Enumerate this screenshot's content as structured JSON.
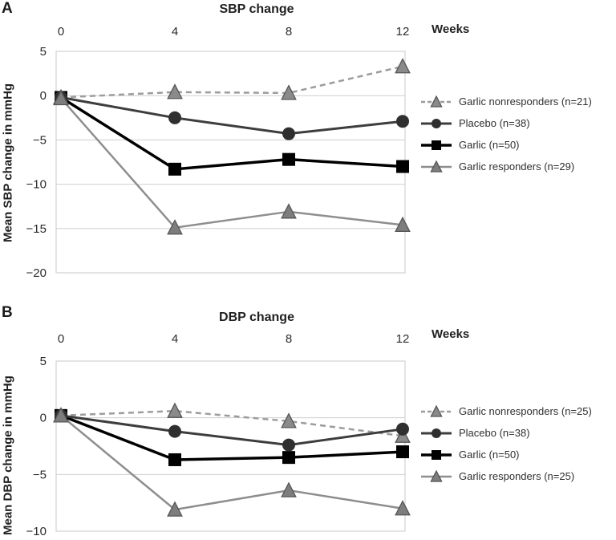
{
  "chart_data": [
    {
      "type": "line",
      "panel_label": "A",
      "title": "SBP change",
      "xlabel": "Weeks",
      "ylabel": "Mean SBP change in mmHg",
      "x": [
        0,
        4,
        8,
        12
      ],
      "x_tick_labels": [
        "0",
        "4",
        "8",
        "12"
      ],
      "y_ticks": [
        5,
        0,
        -5,
        -10,
        -15,
        -20
      ],
      "y_tick_labels": [
        "5",
        "0",
        "−5",
        "−10",
        "−15",
        "−20"
      ],
      "ylim": [
        -20,
        5
      ],
      "grid": true,
      "legend_position": "right",
      "series": [
        {
          "name": "Garlic nonresponders (n=21)",
          "values": [
            -0.2,
            0.4,
            0.3,
            3.3
          ],
          "color": "#9c9c9c",
          "marker": "triangle",
          "marker_fill": "#8a8a8a",
          "dash": true,
          "width": 2.5
        },
        {
          "name": "Placebo (n=38)",
          "values": [
            -0.2,
            -2.5,
            -4.3,
            -2.9
          ],
          "color": "#3d3d3d",
          "marker": "circle",
          "marker_fill": "#2f2f2f",
          "dash": false,
          "width": 3
        },
        {
          "name": "Garlic (n=50)",
          "values": [
            -0.2,
            -8.3,
            -7.2,
            -8.0
          ],
          "color": "#000000",
          "marker": "square",
          "marker_fill": "#000000",
          "dash": false,
          "width": 3.5
        },
        {
          "name": "Garlic responders (n=29)",
          "values": [
            -0.3,
            -14.9,
            -13.1,
            -14.6
          ],
          "color": "#8e8e8e",
          "marker": "triangle",
          "marker_fill": "#7d7d7d",
          "dash": false,
          "width": 2.5
        }
      ]
    },
    {
      "type": "line",
      "panel_label": "B",
      "title": "DBP change",
      "xlabel": "Weeks",
      "ylabel": "Mean DBP change in mmHg",
      "x": [
        0,
        4,
        8,
        12
      ],
      "x_tick_labels": [
        "0",
        "4",
        "8",
        "12"
      ],
      "y_ticks": [
        5,
        0,
        -5,
        -10
      ],
      "y_tick_labels": [
        "5",
        "0",
        "−5",
        "−10"
      ],
      "ylim": [
        -10,
        5
      ],
      "grid": true,
      "legend_position": "right",
      "series": [
        {
          "name": "Garlic nonresponders (n=25)",
          "values": [
            0.2,
            0.6,
            -0.3,
            -1.6
          ],
          "color": "#9c9c9c",
          "marker": "triangle",
          "marker_fill": "#8a8a8a",
          "dash": true,
          "width": 2.5
        },
        {
          "name": "Placebo (n=38)",
          "values": [
            0.2,
            -1.2,
            -2.4,
            -1.0
          ],
          "color": "#3d3d3d",
          "marker": "circle",
          "marker_fill": "#2f2f2f",
          "dash": false,
          "width": 3
        },
        {
          "name": "Garlic (n=50)",
          "values": [
            0.2,
            -3.7,
            -3.5,
            -3.0
          ],
          "color": "#000000",
          "marker": "square",
          "marker_fill": "#000000",
          "dash": false,
          "width": 3.5
        },
        {
          "name": "Garlic responders (n=25)",
          "values": [
            0.2,
            -8.1,
            -6.4,
            -8.0
          ],
          "color": "#8e8e8e",
          "marker": "triangle",
          "marker_fill": "#7d7d7d",
          "dash": false,
          "width": 2.5
        }
      ]
    }
  ],
  "colors": {
    "gridline": "#cfcfcf",
    "plot_border": "#c9c9c9",
    "tick_text": "#2b2b2b"
  }
}
